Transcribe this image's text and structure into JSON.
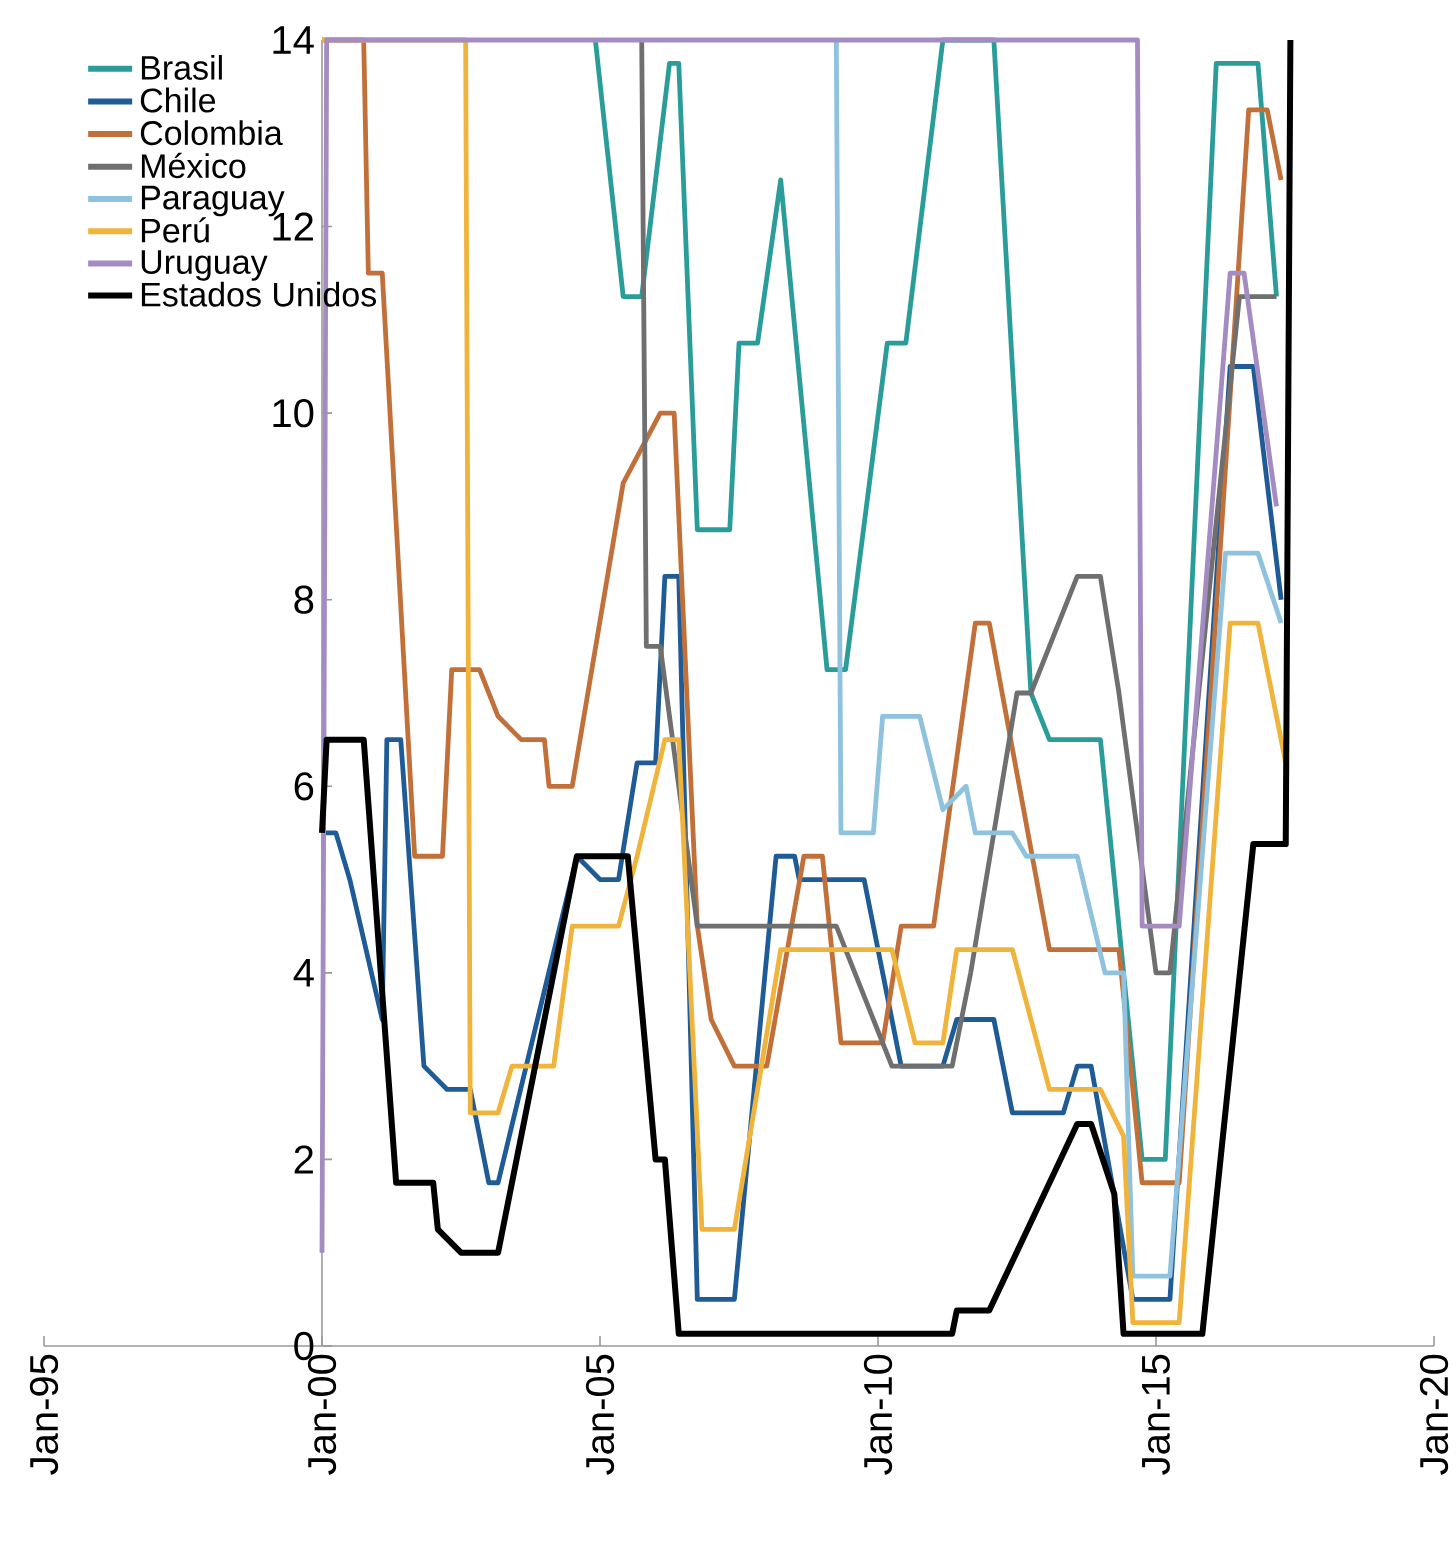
{
  "chart_data": {
    "type": "line",
    "xlim": [
      "1995-01",
      "2020-01"
    ],
    "xticks": [
      {
        "value": "1995-01",
        "label": "Jan-95"
      },
      {
        "value": "2000-01",
        "label": "Jan-00"
      },
      {
        "value": "2005-01",
        "label": "Jan-05"
      },
      {
        "value": "2010-01",
        "label": "Jan-10"
      },
      {
        "value": "2015-01",
        "label": "Jan-15"
      },
      {
        "value": "2020-01",
        "label": "Jan-20"
      }
    ],
    "ylim": [
      0,
      14
    ],
    "yticks": [
      0,
      2,
      4,
      6,
      8,
      10,
      12,
      14
    ],
    "legend": "top left",
    "grid": false,
    "series": [
      {
        "name": "Brasil",
        "color": "#2a9d9a",
        "x": [
          "2004-12",
          "2005-06",
          "2005-10",
          "2006-04",
          "2006-06",
          "2006-10",
          "2007-05",
          "2007-07",
          "2007-11",
          "2008-04",
          "2009-02",
          "2009-06",
          "2010-03",
          "2010-07",
          "2011-03",
          "2012-02",
          "2012-10",
          "2013-02",
          "2014-01",
          "2014-10",
          "2015-03",
          "2016-02",
          "2016-11",
          "2017-03"
        ],
        "values": [
          14,
          11.25,
          11.25,
          13.75,
          13.75,
          8.75,
          8.75,
          10.75,
          10.75,
          12.5,
          7.25,
          7.25,
          10.75,
          10.75,
          14,
          14,
          7.0,
          6.5,
          6.5,
          2.0,
          2.0,
          13.75,
          13.75,
          11.25
        ]
      },
      {
        "name": "Chile",
        "color": "#1f5b96",
        "x": [
          "2000-01",
          "2000-04",
          "2000-07",
          "2001-02",
          "2001-03",
          "2001-06",
          "2001-11",
          "2002-04",
          "2002-09",
          "2003-01",
          "2003-03",
          "2004-08",
          "2005-01",
          "2005-05",
          "2005-09",
          "2006-01",
          "2006-03",
          "2006-06",
          "2006-10",
          "2007-06",
          "2008-03",
          "2008-07",
          "2008-08",
          "2009-10",
          "2010-06",
          "2011-03",
          "2011-06",
          "2012-02",
          "2012-06",
          "2013-05",
          "2013-08",
          "2013-11",
          "2014-08",
          "2015-04",
          "2016-05",
          "2016-10",
          "2017-04"
        ],
        "values": [
          5.5,
          5.5,
          5.0,
          3.5,
          6.5,
          6.5,
          3.0,
          2.75,
          2.75,
          1.75,
          1.75,
          5.25,
          5.0,
          5.0,
          6.25,
          6.25,
          8.25,
          8.25,
          0.5,
          0.5,
          5.25,
          5.25,
          5.0,
          5.0,
          3.0,
          3.0,
          3.5,
          3.5,
          2.5,
          2.5,
          3.0,
          3.0,
          0.5,
          0.5,
          10.5,
          10.5,
          8.0
        ]
      },
      {
        "name": "Colombia",
        "color": "#c2703a",
        "x": [
          "2000-01",
          "2000-10",
          "2000-11",
          "2001-02",
          "2001-09",
          "2002-03",
          "2002-04",
          "2002-05",
          "2002-11",
          "2003-03",
          "2003-08",
          "2004-01",
          "2004-02",
          "2004-07",
          "2005-06",
          "2006-02",
          "2006-05",
          "2006-10",
          "2007-01",
          "2007-06",
          "2008-01",
          "2008-09",
          "2009-01",
          "2009-05",
          "2010-02",
          "2010-06",
          "2011-01",
          "2011-10",
          "2012-01",
          "2013-02",
          "2014-05",
          "2014-10",
          "2015-06",
          "2016-09",
          "2017-01",
          "2017-04"
        ],
        "values": [
          14,
          14,
          11.5,
          11.5,
          5.25,
          5.25,
          6.25,
          7.25,
          7.25,
          6.75,
          6.5,
          6.5,
          6.0,
          6.0,
          9.25,
          10.0,
          10.0,
          4.5,
          3.5,
          3.0,
          3.0,
          5.25,
          5.25,
          3.25,
          3.25,
          4.5,
          4.5,
          7.75,
          7.75,
          4.25,
          4.25,
          1.75,
          1.75,
          13.25,
          13.25,
          12.5
        ]
      },
      {
        "name": "México",
        "color": "#6f6f6f",
        "x": [
          "2005-10",
          "2005-11",
          "2006-02",
          "2006-10",
          "2009-04",
          "2009-08",
          "2009-12",
          "2010-04",
          "2011-05",
          "2011-09",
          "2012-07",
          "2012-10",
          "2013-08",
          "2014-01",
          "2014-05",
          "2015-01",
          "2015-04",
          "2016-07",
          "2017-03"
        ],
        "values": [
          14,
          7.5,
          7.5,
          4.5,
          4.5,
          4.0,
          3.5,
          3.0,
          3.0,
          4.0,
          7.0,
          7.0,
          8.25,
          8.25,
          7.0,
          4.0,
          4.0,
          11.25,
          11.25
        ]
      },
      {
        "name": "Paraguay",
        "color": "#8ec2de",
        "x": [
          "2009-04",
          "2009-05",
          "2009-12",
          "2010-02",
          "2010-10",
          "2011-03",
          "2011-08",
          "2011-10",
          "2012-06",
          "2012-09",
          "2013-08",
          "2014-02",
          "2014-06",
          "2014-08",
          "2015-04",
          "2016-04",
          "2016-11",
          "2017-04"
        ],
        "values": [
          14,
          5.5,
          5.5,
          6.75,
          6.75,
          5.75,
          6.0,
          5.5,
          5.5,
          5.25,
          5.25,
          4.0,
          4.0,
          0.75,
          0.75,
          8.5,
          8.5,
          7.75
        ]
      },
      {
        "name": "Perú",
        "color": "#f0b43c",
        "x": [
          "2000-01",
          "2002-08",
          "2002-09",
          "2003-03",
          "2003-06",
          "2004-03",
          "2004-07",
          "2005-05",
          "2005-09",
          "2006-03",
          "2006-06",
          "2006-11",
          "2007-06",
          "2008-04",
          "2010-04",
          "2010-09",
          "2011-03",
          "2011-06",
          "2012-06",
          "2013-02",
          "2014-01",
          "2014-06",
          "2014-08",
          "2015-06",
          "2016-05",
          "2016-11",
          "2017-05"
        ],
        "values": [
          14,
          14,
          2.5,
          2.5,
          3.0,
          3.0,
          4.5,
          4.5,
          5.25,
          6.5,
          6.5,
          1.25,
          1.25,
          4.25,
          4.25,
          3.25,
          3.25,
          4.25,
          4.25,
          2.75,
          2.75,
          2.25,
          0.25,
          0.25,
          7.75,
          7.75,
          6.25
        ]
      },
      {
        "name": "Uruguay",
        "color": "#a48cc2",
        "x": [
          "2000-01",
          "2000-02",
          "2014-09",
          "2014-10",
          "2015-06",
          "2016-05",
          "2016-08",
          "2017-03"
        ],
        "values": [
          1.0,
          14,
          14,
          4.5,
          4.5,
          11.5,
          11.5,
          9.0
        ]
      },
      {
        "name": "Estados Unidos",
        "color": "#000000",
        "x": [
          "2000-01",
          "2000-02",
          "2000-10",
          "2001-05",
          "2002-01",
          "2002-02",
          "2002-07",
          "2003-03",
          "2004-08",
          "2005-07",
          "2006-01",
          "2006-03",
          "2006-06",
          "2011-05",
          "2011-06",
          "2012-01",
          "2013-08",
          "2013-11",
          "2014-04",
          "2014-06",
          "2015-11",
          "2016-10",
          "2017-05",
          "2017-06"
        ],
        "values": [
          5.5,
          6.5,
          6.5,
          1.75,
          1.75,
          1.25,
          1.0,
          1.0,
          5.25,
          5.25,
          2.0,
          2.0,
          0.13,
          0.13,
          0.38,
          0.38,
          2.38,
          2.38,
          1.63,
          0.13,
          0.13,
          5.38,
          5.38,
          14
        ]
      }
    ]
  }
}
